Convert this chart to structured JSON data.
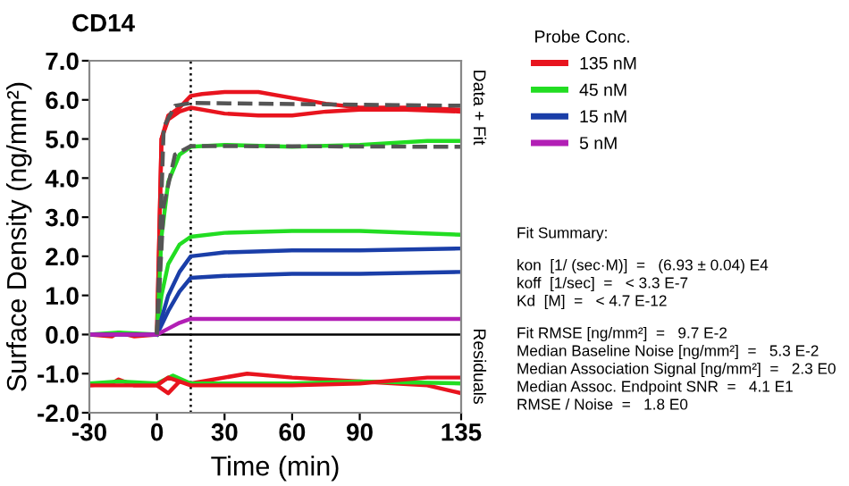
{
  "chart_data": {
    "type": "line",
    "title": "CD14",
    "xlabel": "Time (min)",
    "ylabel": "Surface Density (ng/mm²)",
    "legend_title": "Probe Conc.",
    "legend": "right",
    "grid": false,
    "marker": "none",
    "xlim": [
      -30,
      135
    ],
    "ylim": [
      -2,
      7
    ],
    "xticks": [
      -30,
      0,
      30,
      60,
      90,
      135
    ],
    "yticks": [
      {
        "value": -2,
        "label": "-2.0"
      },
      {
        "value": -1,
        "label": "-1.0"
      },
      {
        "value": 0,
        "label": "0.0"
      },
      {
        "value": 1,
        "label": "1.0"
      },
      {
        "value": 2,
        "label": "2.0"
      },
      {
        "value": 3,
        "label": "3.0"
      },
      {
        "value": 4,
        "label": "4.0"
      },
      {
        "value": 5,
        "label": "5.0"
      },
      {
        "value": 6,
        "label": "6.0"
      },
      {
        "value": 7,
        "label": "7.0"
      }
    ],
    "ref_lines": [
      {
        "axis": "x",
        "value": 15,
        "color": "#000000",
        "line_style": "dotted"
      },
      {
        "axis": "y",
        "value": 0,
        "color": "#000000",
        "line_style": "solid"
      }
    ],
    "series": [
      {
        "name": "135 nM",
        "color": "#e8141e",
        "line_style": "solid",
        "x": [
          -30,
          -20,
          -17,
          -10,
          0,
          1,
          2,
          5,
          10,
          15,
          20,
          30,
          45,
          60,
          75,
          90,
          110,
          135
        ],
        "values": [
          0,
          -0.05,
          0.05,
          -0.05,
          0,
          2.5,
          5.0,
          5.6,
          5.8,
          6.1,
          6.15,
          6.2,
          6.2,
          6.05,
          5.9,
          5.8,
          5.8,
          5.75
        ]
      },
      {
        "color": "#e8141e",
        "line_style": "solid",
        "x": [
          0,
          1,
          2,
          5,
          10,
          15,
          30,
          45,
          60,
          75,
          90,
          110,
          135
        ],
        "values": [
          0,
          2.4,
          5.0,
          5.5,
          5.7,
          5.8,
          5.65,
          5.6,
          5.6,
          5.7,
          5.75,
          5.75,
          5.7
        ]
      },
      {
        "name": "45 nM",
        "color": "#22dd22",
        "line_style": "solid",
        "x": [
          -30,
          -17,
          0,
          2,
          5,
          10,
          15,
          30,
          60,
          90,
          120,
          135
        ],
        "values": [
          0,
          0.05,
          0,
          2.5,
          3.9,
          4.6,
          4.8,
          4.85,
          4.8,
          4.85,
          4.95,
          4.95
        ]
      },
      {
        "color": "#22dd22",
        "line_style": "solid",
        "x": [
          0,
          2,
          5,
          10,
          15,
          30,
          60,
          90,
          135
        ],
        "values": [
          0,
          1.0,
          1.8,
          2.3,
          2.5,
          2.6,
          2.65,
          2.65,
          2.55
        ]
      },
      {
        "name": "15 nM",
        "color": "#1a3ea8",
        "line_style": "solid",
        "x": [
          -30,
          0,
          5,
          10,
          15,
          30,
          60,
          90,
          135
        ],
        "values": [
          0,
          0,
          1.0,
          1.6,
          2.0,
          2.1,
          2.15,
          2.15,
          2.2
        ]
      },
      {
        "color": "#1a3ea8",
        "line_style": "solid",
        "x": [
          0,
          5,
          10,
          15,
          30,
          60,
          90,
          135
        ],
        "values": [
          0,
          0.6,
          1.1,
          1.45,
          1.5,
          1.55,
          1.55,
          1.6
        ]
      },
      {
        "name": "5 nM",
        "color": "#b21fb5",
        "line_style": "solid",
        "x": [
          -30,
          0,
          5,
          10,
          15,
          30,
          60,
          90,
          135
        ],
        "values": [
          0,
          0,
          0.15,
          0.3,
          0.4,
          0.4,
          0.4,
          0.4,
          0.4
        ]
      },
      {
        "color": "#555555",
        "line_style": "dashed",
        "x": [
          0,
          3,
          8,
          15,
          135
        ],
        "values": [
          0,
          5.3,
          5.85,
          5.92,
          5.85
        ]
      },
      {
        "color": "#555555",
        "line_style": "dashed",
        "x": [
          0,
          3,
          8,
          15,
          135
        ],
        "values": [
          0,
          3.3,
          4.6,
          4.82,
          4.8
        ]
      },
      {
        "color": "#e8141e",
        "line_style": "solid",
        "x": [
          -30,
          -20,
          -17,
          -10,
          0,
          5,
          10,
          15,
          40,
          60,
          90,
          120,
          135
        ],
        "values": [
          -1.3,
          -1.25,
          -1.15,
          -1.3,
          -1.3,
          -1.5,
          -1.2,
          -1.25,
          -1.0,
          -1.1,
          -1.2,
          -1.3,
          -1.5
        ]
      },
      {
        "color": "#22dd22",
        "line_style": "solid",
        "x": [
          -30,
          -17,
          0,
          7,
          15,
          60,
          90,
          135
        ],
        "values": [
          -1.25,
          -1.2,
          -1.25,
          -1.05,
          -1.25,
          -1.25,
          -1.2,
          -1.25
        ]
      },
      {
        "color": "#e8141e",
        "line_style": "solid",
        "x": [
          -30,
          0,
          5,
          15,
          40,
          60,
          90,
          120,
          135
        ],
        "values": [
          -1.3,
          -1.3,
          -1.1,
          -1.3,
          -1.3,
          -1.3,
          -1.25,
          -1.1,
          -1.1
        ]
      }
    ],
    "annotations": [
      "Data + Fit",
      "Residuals",
      "Fit Summary:",
      "kon  [1/ (sec·M)]  =   (6.93 ± 0.04) E4",
      "koff  [1/sec]  =   < 3.3 E-7",
      "Kd  [M]  =   < 4.7 E-12",
      "Fit RMSE [ng/mm²]  =   9.7 E-2",
      "Median Baseline Noise [ng/mm²]  =   5.3 E-2",
      "Median Association Signal [ng/mm²]  =   2.3 E0",
      "Median Assoc. Endpoint SNR  =   4.1 E1",
      "RMSE / Noise  =   1.8 E0"
    ]
  }
}
